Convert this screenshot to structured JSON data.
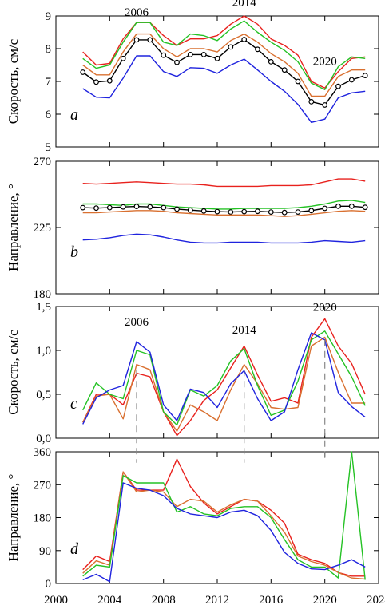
{
  "colors": {
    "red": "#e8211d",
    "orange": "#d97030",
    "green": "#25c225",
    "blue": "#1f23de",
    "black": "#000000",
    "guide": "#888888"
  },
  "x_axis": {
    "range": [
      2000,
      2024
    ],
    "ticks": [
      2000,
      2004,
      2008,
      2012,
      2016,
      2020,
      2024
    ],
    "tick_labels": [
      "2000",
      "2004",
      "2008",
      "2012",
      "2016",
      "2020",
      "2024"
    ]
  },
  "guides": [
    {
      "year": 2006,
      "from_value": 0.78,
      "to_value": 330
    },
    {
      "year": 2014,
      "from_value": 0.78,
      "to_value": 330
    },
    {
      "year": 2020,
      "from_value": 1.12,
      "to_value": 330
    }
  ],
  "chart_data": [
    {
      "type": "line",
      "panel": "a",
      "ylabel": "Скорость, см/с",
      "ylim": [
        5,
        9
      ],
      "yticks": [
        5,
        6,
        7,
        8,
        9
      ],
      "ytick_labels": [
        "5",
        "6",
        "7",
        "8",
        "9"
      ],
      "annotations": [
        {
          "text": "2006",
          "x": 2006,
          "y": 9.0
        },
        {
          "text": "2014",
          "x": 2014,
          "y": 9.3
        },
        {
          "text": "2020",
          "x": 2020,
          "y": 7.5
        }
      ],
      "x": [
        2002,
        2003,
        2004,
        2005,
        2006,
        2007,
        2008,
        2009,
        2010,
        2011,
        2012,
        2013,
        2014,
        2015,
        2016,
        2017,
        2018,
        2019,
        2020,
        2021,
        2022,
        2023
      ],
      "series": [
        {
          "color": "red",
          "values": [
            7.9,
            7.5,
            7.55,
            8.3,
            8.8,
            8.8,
            8.4,
            8.1,
            8.3,
            8.3,
            8.4,
            8.75,
            9.0,
            8.75,
            8.3,
            8.1,
            7.8,
            7.0,
            6.8,
            7.3,
            7.7,
            7.75
          ]
        },
        {
          "color": "green",
          "values": [
            7.7,
            7.4,
            7.5,
            8.2,
            8.8,
            8.8,
            8.2,
            8.1,
            8.45,
            8.4,
            8.25,
            8.6,
            8.85,
            8.5,
            8.2,
            7.95,
            7.6,
            6.95,
            6.75,
            7.45,
            7.75,
            7.7
          ]
        },
        {
          "color": "orange",
          "values": [
            7.5,
            7.2,
            7.2,
            7.9,
            8.45,
            8.45,
            8.0,
            7.75,
            8.0,
            8.0,
            7.9,
            8.25,
            8.45,
            8.2,
            7.85,
            7.6,
            7.25,
            6.55,
            6.55,
            7.15,
            7.35,
            7.35
          ]
        },
        {
          "color": "black",
          "markers": true,
          "values": [
            7.28,
            6.98,
            7.02,
            7.7,
            8.27,
            8.27,
            7.8,
            7.58,
            7.82,
            7.82,
            7.7,
            8.05,
            8.28,
            7.98,
            7.6,
            7.35,
            7.0,
            6.38,
            6.28,
            6.85,
            7.05,
            7.18
          ]
        },
        {
          "color": "blue",
          "values": [
            6.78,
            6.52,
            6.5,
            7.1,
            7.78,
            7.78,
            7.3,
            7.15,
            7.42,
            7.4,
            7.25,
            7.5,
            7.68,
            7.35,
            7.0,
            6.7,
            6.3,
            5.75,
            5.85,
            6.5,
            6.65,
            6.7
          ]
        }
      ]
    },
    {
      "type": "line",
      "panel": "b",
      "ylabel": "Направление, °",
      "ylim": [
        180,
        270
      ],
      "yticks": [
        180,
        225,
        270
      ],
      "ytick_labels": [
        "180",
        "225",
        "270"
      ],
      "annotations": [],
      "x": [
        2002,
        2003,
        2004,
        2005,
        2006,
        2007,
        2008,
        2009,
        2010,
        2011,
        2012,
        2013,
        2014,
        2015,
        2016,
        2017,
        2018,
        2019,
        2020,
        2021,
        2022,
        2023
      ],
      "series": [
        {
          "color": "red",
          "values": [
            255,
            254.5,
            255,
            255.5,
            256,
            255.5,
            255,
            254.5,
            254.5,
            254,
            253,
            253,
            253,
            253,
            253.5,
            253.5,
            253.5,
            254,
            256,
            258,
            258,
            256.5
          ]
        },
        {
          "color": "green",
          "values": [
            241,
            241,
            240.5,
            240,
            241,
            241,
            240,
            239,
            238.5,
            238,
            237.5,
            237.5,
            238,
            238,
            238,
            238,
            238.5,
            239.5,
            241,
            243,
            243.5,
            242
          ]
        },
        {
          "color": "black",
          "markers": true,
          "values": [
            238.5,
            238.2,
            238.5,
            239,
            239.3,
            239,
            238.5,
            237.5,
            236.8,
            236.2,
            235.8,
            235.5,
            235.8,
            236,
            235.5,
            235.2,
            235.5,
            236.5,
            238,
            239.5,
            239.5,
            238.7
          ]
        },
        {
          "color": "orange",
          "values": [
            235,
            235,
            235.5,
            236,
            236.5,
            236.5,
            236,
            235,
            234.5,
            234,
            233.5,
            233.5,
            233.5,
            233.5,
            233,
            232.5,
            233,
            234,
            235,
            236,
            236.5,
            236
          ]
        },
        {
          "color": "blue",
          "values": [
            216.5,
            217,
            218,
            219.5,
            220.5,
            220,
            218.5,
            216.5,
            215,
            214.5,
            214.5,
            215,
            215,
            215,
            214.5,
            214.5,
            214.5,
            215,
            216,
            215.5,
            215,
            216
          ]
        }
      ]
    },
    {
      "type": "line",
      "panel": "c",
      "ylabel": "Скорость, см/с",
      "ylim": [
        0,
        1.5
      ],
      "yticks": [
        0,
        0.5,
        1.0,
        1.5
      ],
      "ytick_labels": [
        "0,0",
        "0,5",
        "1,0",
        "1,5"
      ],
      "annotations": [
        {
          "text": "2006",
          "x": 2006,
          "y": 1.28
        },
        {
          "text": "2014",
          "x": 2014,
          "y": 1.19
        },
        {
          "text": "2020",
          "x": 2020,
          "y": 1.45
        }
      ],
      "x": [
        2002,
        2003,
        2004,
        2005,
        2006,
        2007,
        2008,
        2009,
        2010,
        2011,
        2012,
        2013,
        2014,
        2015,
        2016,
        2017,
        2018,
        2019,
        2020,
        2021,
        2022,
        2023
      ],
      "series": [
        {
          "color": "red",
          "values": [
            0.18,
            0.5,
            0.5,
            0.38,
            0.74,
            0.7,
            0.3,
            0.03,
            0.2,
            0.43,
            0.55,
            0.8,
            1.05,
            0.72,
            0.42,
            0.46,
            0.4,
            1.15,
            1.36,
            1.05,
            0.85,
            0.5
          ]
        },
        {
          "color": "orange",
          "values": [
            0.18,
            0.48,
            0.5,
            0.22,
            0.84,
            0.78,
            0.3,
            0.08,
            0.38,
            0.3,
            0.2,
            0.55,
            0.84,
            0.62,
            0.35,
            0.33,
            0.35,
            1.05,
            1.15,
            0.75,
            0.4,
            0.4
          ]
        },
        {
          "color": "green",
          "values": [
            0.32,
            0.63,
            0.5,
            0.45,
            1.0,
            0.95,
            0.3,
            0.15,
            0.55,
            0.48,
            0.6,
            0.88,
            1.02,
            0.6,
            0.26,
            0.32,
            0.65,
            1.12,
            1.22,
            0.96,
            0.7,
            0.37
          ]
        },
        {
          "color": "blue",
          "values": [
            0.16,
            0.46,
            0.55,
            0.6,
            1.1,
            0.98,
            0.38,
            0.2,
            0.56,
            0.52,
            0.35,
            0.62,
            0.77,
            0.45,
            0.2,
            0.3,
            0.78,
            1.2,
            1.12,
            0.52,
            0.36,
            0.24
          ]
        }
      ]
    },
    {
      "type": "line",
      "panel": "d",
      "ylabel": "Направление, °",
      "ylim": [
        0,
        360
      ],
      "yticks": [
        0,
        90,
        180,
        270,
        360
      ],
      "ytick_labels": [
        "0",
        "90",
        "180",
        "270",
        "360"
      ],
      "annotations": [],
      "x": [
        2002,
        2003,
        2004,
        2005,
        2006,
        2007,
        2008,
        2009,
        2010,
        2011,
        2012,
        2013,
        2014,
        2015,
        2016,
        2017,
        2018,
        2019,
        2020,
        2021,
        2022,
        2023
      ],
      "series": [
        {
          "color": "red",
          "values": [
            38,
            75,
            60,
            305,
            255,
            255,
            255,
            340,
            265,
            220,
            190,
            210,
            230,
            225,
            200,
            165,
            80,
            65,
            55,
            30,
            20,
            20
          ]
        },
        {
          "color": "orange",
          "values": [
            28,
            62,
            50,
            305,
            250,
            255,
            250,
            210,
            230,
            225,
            195,
            215,
            230,
            225,
            185,
            140,
            75,
            60,
            50,
            30,
            15,
            12
          ]
        },
        {
          "color": "green",
          "values": [
            20,
            50,
            45,
            295,
            275,
            275,
            275,
            195,
            210,
            190,
            185,
            205,
            210,
            210,
            180,
            120,
            65,
            45,
            45,
            15,
            360,
            10
          ]
        },
        {
          "color": "blue",
          "values": [
            10,
            25,
            5,
            275,
            260,
            255,
            240,
            205,
            190,
            185,
            180,
            195,
            200,
            185,
            145,
            85,
            55,
            40,
            38,
            50,
            65,
            45
          ]
        }
      ]
    }
  ]
}
